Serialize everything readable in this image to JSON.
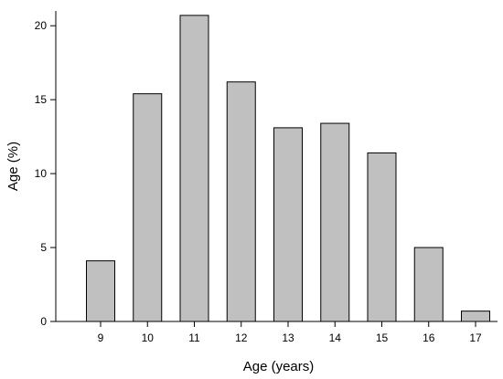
{
  "chart_data": {
    "type": "bar",
    "title": "",
    "xlabel": "Age (years)",
    "ylabel": "Age (%)",
    "categories": [
      "9",
      "10",
      "11",
      "12",
      "13",
      "14",
      "15",
      "16",
      "17"
    ],
    "values": [
      4.1,
      15.4,
      20.7,
      16.2,
      13.1,
      13.4,
      11.4,
      5.0,
      0.7
    ],
    "ylim": [
      0,
      21
    ],
    "yticks": [
      0,
      5,
      10,
      15,
      20
    ],
    "grid": false,
    "legend": "none",
    "bar_color": "#c0c0c0",
    "bar_edge_color": "#000000"
  }
}
